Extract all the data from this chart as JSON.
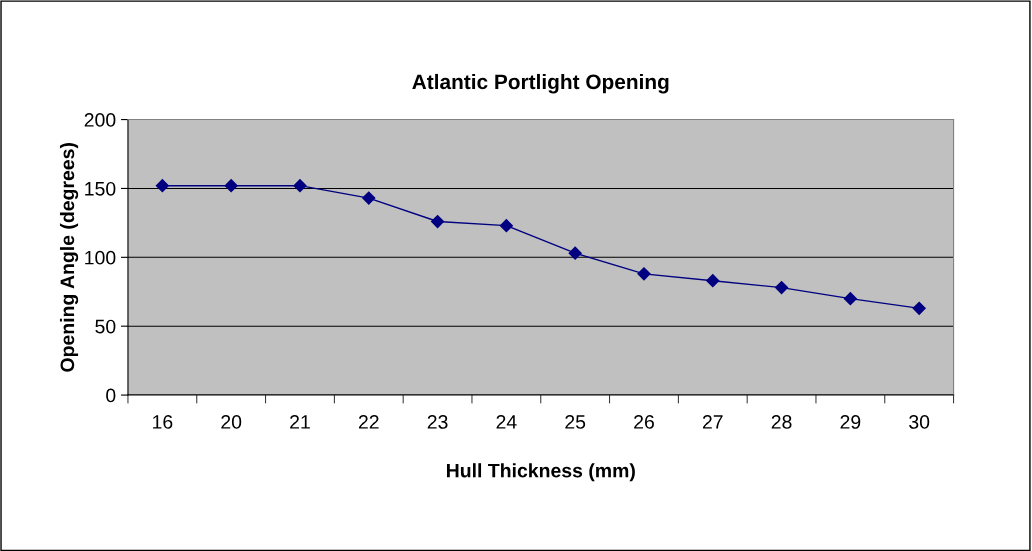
{
  "chart_data": {
    "type": "line",
    "title": "Atlantic Portlight Opening",
    "xlabel": "Hull Thickness (mm)",
    "ylabel": "Opening Angle (degrees)",
    "categories": [
      "16",
      "20",
      "21",
      "22",
      "23",
      "24",
      "25",
      "26",
      "27",
      "28",
      "29",
      "30"
    ],
    "series": [
      {
        "color": "#000080",
        "values": [
          152,
          152,
          152,
          143,
          126,
          123,
          103,
          88,
          83,
          78,
          70,
          63
        ]
      }
    ],
    "ylim": [
      0,
      200
    ],
    "yticks": [
      0,
      50,
      100,
      150,
      200
    ],
    "grid": "y",
    "marker": "diamond",
    "line_style": "solid",
    "legend": false
  }
}
